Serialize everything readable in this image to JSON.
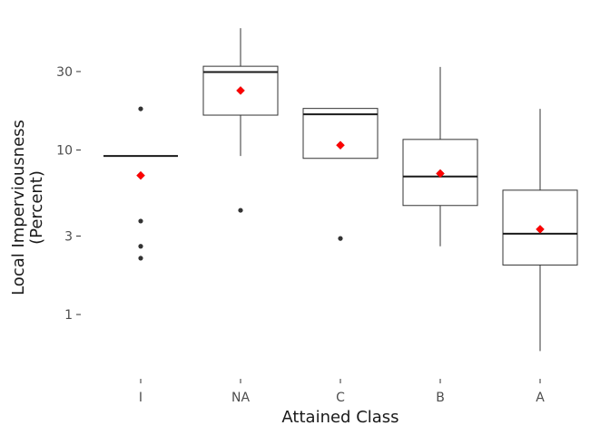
{
  "chart_data": {
    "type": "boxplot",
    "xlabel": "Attained Class",
    "ylabel_lines": [
      "Local  Imperviousness",
      "(Percent)"
    ],
    "y_scale": "log10",
    "ylim": [
      0.45,
      65
    ],
    "yticks": [
      1,
      3,
      10,
      30
    ],
    "ytick_labels": [
      "1",
      "3",
      "10",
      "30"
    ],
    "grid": false,
    "legend": "none",
    "colors": {
      "box_line": "#333333",
      "median": "#1a1a1a",
      "outlier": "#333333",
      "mean": "#ff0000"
    },
    "categories": [
      "I",
      "NA",
      "C",
      "B",
      "A"
    ],
    "boxes": [
      {
        "name": "I",
        "whisker_low": 9.2,
        "q1": 9.2,
        "median": 9.2,
        "q3": 9.2,
        "whisker_high": 9.2,
        "mean": 7.0,
        "outliers": [
          17.8,
          3.7,
          2.6,
          2.2
        ]
      },
      {
        "name": "NA",
        "whisker_low": 9.2,
        "q1": 16.3,
        "median": 29.8,
        "q3": 32.3,
        "whisker_high": 55.0,
        "mean": 23.0,
        "outliers": [
          4.3
        ]
      },
      {
        "name": "C",
        "whisker_low": 8.9,
        "q1": 8.9,
        "median": 16.5,
        "q3": 17.9,
        "whisker_high": 17.9,
        "mean": 10.7,
        "outliers": [
          2.9
        ]
      },
      {
        "name": "B",
        "whisker_low": 2.6,
        "q1": 4.6,
        "median": 6.9,
        "q3": 11.6,
        "whisker_high": 32.0,
        "mean": 7.2,
        "outliers": []
      },
      {
        "name": "A",
        "whisker_low": 0.6,
        "q1": 2.0,
        "median": 3.1,
        "q3": 5.7,
        "whisker_high": 17.8,
        "mean": 3.3,
        "outliers": []
      }
    ]
  }
}
